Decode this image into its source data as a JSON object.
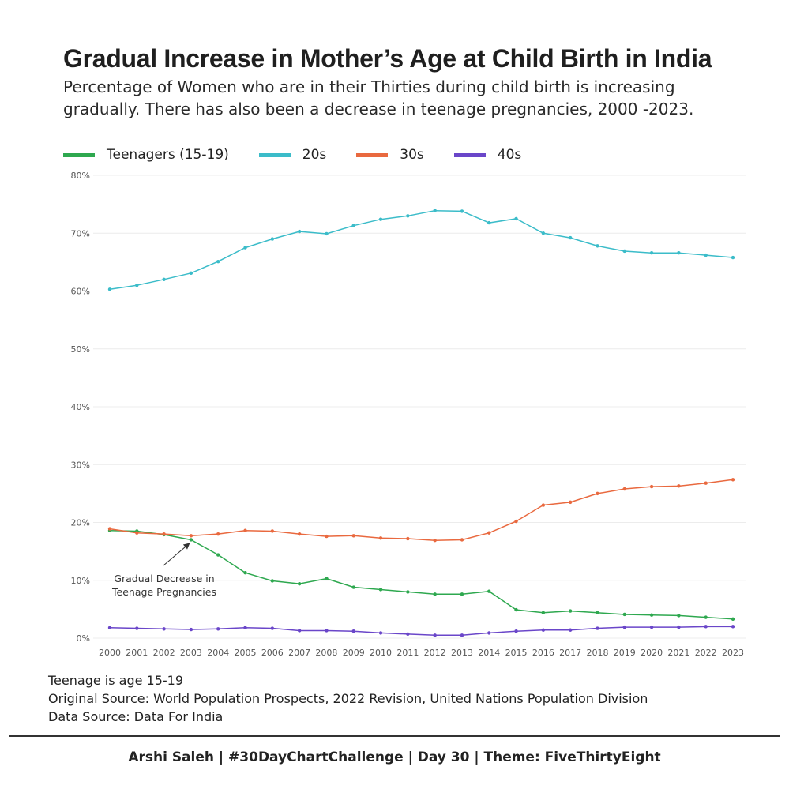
{
  "title": "Gradual Increase in Mother’s Age at Child Birth in India",
  "subtitle": "Percentage of Women who are in their Thirties during child birth is increasing gradually. There has also been a decrease in teenage pregnancies, 2000 -2023.",
  "notes": {
    "line1": "Teenage is age 15-19",
    "line2": "Original Source: World Population Prospects, 2022 Revision, United Nations Population Division",
    "line3": "Data Source: Data For India"
  },
  "footer": "Arshi Saleh | #30DayChartChallenge | Day 30 | Theme: FiveThirtyEight",
  "colors": {
    "teen": "#2ea84f",
    "twenties": "#3bbcc9",
    "thirties": "#e9693f",
    "forties": "#6a46c9",
    "grid": "#ececec",
    "annotation": "#333333"
  },
  "chart_data": {
    "type": "line",
    "title": "Gradual Increase in Mother’s Age at Child Birth in India",
    "xlabel": "",
    "ylabel": "",
    "ylim": [
      0,
      80
    ],
    "yticks": [
      0,
      10,
      20,
      30,
      40,
      50,
      60,
      70,
      80
    ],
    "ytick_labels": [
      "0%",
      "10%",
      "20%",
      "30%",
      "40%",
      "50%",
      "60%",
      "70%",
      "80%"
    ],
    "grid": true,
    "legend_position": "top-left",
    "x": [
      2000,
      2001,
      2002,
      2003,
      2004,
      2005,
      2006,
      2007,
      2008,
      2009,
      2010,
      2011,
      2012,
      2013,
      2014,
      2015,
      2016,
      2017,
      2018,
      2019,
      2020,
      2021,
      2022,
      2023
    ],
    "series": [
      {
        "key": "teen",
        "name": "Teenagers (15-19)",
        "values": [
          18.6,
          18.5,
          17.9,
          17.0,
          14.4,
          11.3,
          9.9,
          9.4,
          10.3,
          8.8,
          8.4,
          8.0,
          7.6,
          7.6,
          8.1,
          4.9,
          4.4,
          4.7,
          4.4,
          4.1,
          4.0,
          3.9,
          3.6,
          3.3
        ]
      },
      {
        "key": "twenties",
        "name": "20s",
        "values": [
          60.3,
          61.0,
          62.0,
          63.1,
          65.1,
          67.5,
          69.0,
          70.3,
          69.9,
          71.3,
          72.4,
          73.0,
          73.9,
          73.8,
          71.8,
          72.5,
          70.0,
          69.2,
          67.8,
          66.9,
          66.6,
          66.6,
          66.2,
          65.8
        ]
      },
      {
        "key": "thirties",
        "name": "30s",
        "values": [
          18.9,
          18.2,
          18.0,
          17.7,
          18.0,
          18.6,
          18.5,
          18.0,
          17.6,
          17.7,
          17.3,
          17.2,
          16.9,
          17.0,
          18.2,
          20.2,
          23.0,
          23.5,
          25.0,
          25.8,
          26.2,
          26.3,
          26.8,
          27.4
        ]
      },
      {
        "key": "forties",
        "name": "40s",
        "values": [
          1.8,
          1.7,
          1.6,
          1.5,
          1.6,
          1.8,
          1.7,
          1.3,
          1.3,
          1.2,
          0.9,
          0.7,
          0.5,
          0.5,
          0.9,
          1.2,
          1.4,
          1.4,
          1.7,
          1.9,
          1.9,
          1.9,
          2.0,
          2.0
        ]
      }
    ],
    "annotations": [
      {
        "line1": "Gradual Decrease in",
        "line2": "Teenage Pregnancies",
        "points_to_x": 2003,
        "points_to_y": 16.8
      }
    ]
  }
}
